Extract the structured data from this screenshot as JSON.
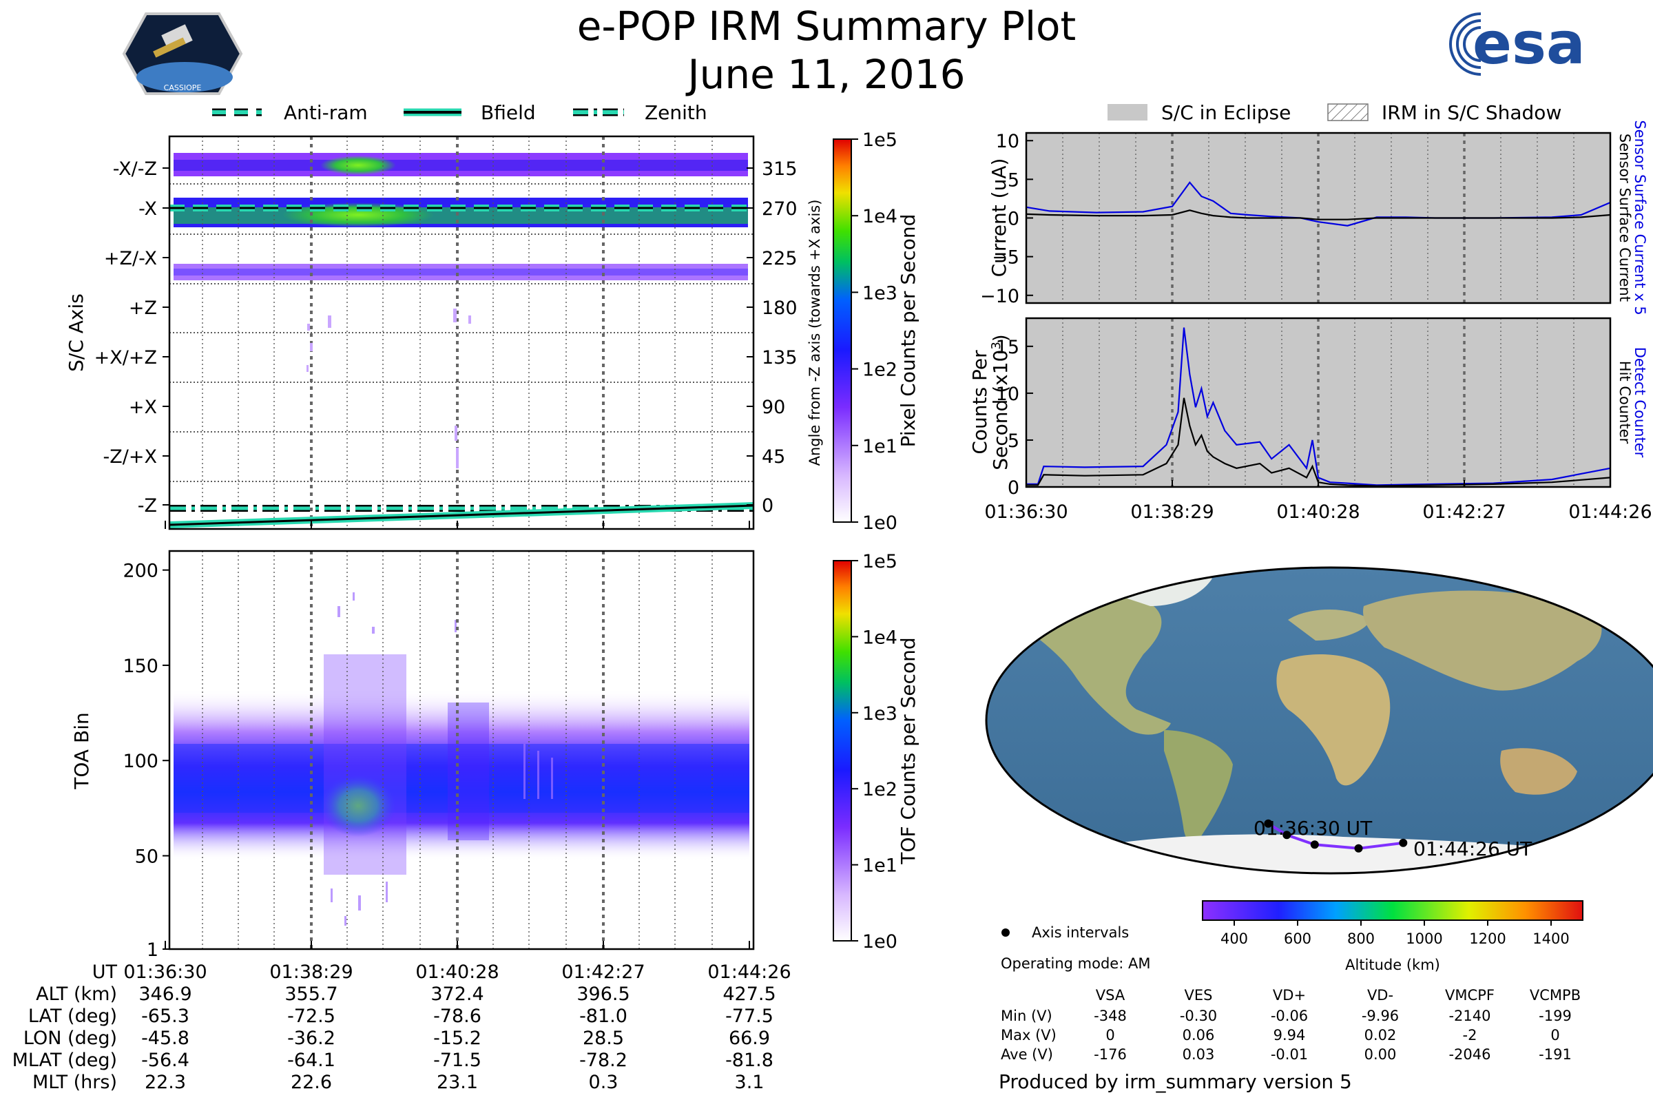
{
  "title": "e-POP IRM Summary Plot",
  "date": "June 11, 2016",
  "logos": {
    "left": "CASSIOPE",
    "right": "esa"
  },
  "legend_top_left": [
    "Anti-ram",
    "Bfield",
    "Zenith"
  ],
  "legend_top_right": [
    "S/C in Eclipse",
    "IRM in S/C Shadow"
  ],
  "produced_by": "Produced by irm_summary version 5",
  "operating_mode": "Operating mode: AM",
  "axis_intervals_label": "Axis intervals",
  "ephemeris": {
    "row_labels": [
      "UT",
      "ALT (km)",
      "LAT (deg)",
      "LON (deg)",
      "MLAT (deg)",
      "MLT (hrs)"
    ],
    "columns": [
      [
        "01:36:30",
        "346.9",
        "-65.3",
        "-45.8",
        "-56.4",
        "22.3"
      ],
      [
        "01:38:29",
        "355.7",
        "-72.5",
        "-36.2",
        "-64.1",
        "22.6"
      ],
      [
        "01:40:28",
        "372.4",
        "-78.6",
        "-15.2",
        "-71.5",
        "23.1"
      ],
      [
        "01:42:27",
        "396.5",
        "-81.0",
        "28.5",
        "-78.2",
        "0.3"
      ],
      [
        "01:44:26",
        "427.5",
        "-77.5",
        "66.9",
        "-81.8",
        "3.1"
      ]
    ]
  },
  "voltages": {
    "headers": [
      "VSA",
      "VES",
      "VD+",
      "VD-",
      "VMCPF",
      "VCMPB"
    ],
    "rows": [
      {
        "label": "Min (V)",
        "values": [
          "-348",
          "-0.30",
          "-0.06",
          "-9.96",
          "-2140",
          "-199"
        ]
      },
      {
        "label": "Max (V)",
        "values": [
          "0",
          "0.06",
          "9.94",
          "0.02",
          "-2",
          "0"
        ]
      },
      {
        "label": "Ave (V)",
        "values": [
          "-176",
          "0.03",
          "-0.01",
          "0.00",
          "-2046",
          "-191"
        ]
      }
    ]
  },
  "map": {
    "start_label": "01:36:30 UT",
    "end_label": "01:44:26 UT"
  },
  "chart_data": [
    {
      "type": "heatmap",
      "name": "angular-distribution",
      "ylabel": "S/C Axis",
      "ylabel_right": "Angle from -Z axis (towards +X axis)",
      "yticklabels_left": [
        "-X/-Z",
        "-X",
        "+Z/-X",
        "+Z",
        "+X/+Z",
        "+X",
        "-Z/+X",
        "-Z"
      ],
      "yticklabels_right": [
        "315",
        "270",
        "225",
        "180",
        "135",
        "90",
        "45",
        "0"
      ],
      "colorbar_label": "Pixel Counts per Second",
      "colorbar_ticks": [
        "1e5",
        "1e4",
        "1e3",
        "1e2",
        "1e1",
        "1e0"
      ],
      "active_bands_deg": [
        [
          292,
          340
        ],
        [
          247,
          292
        ],
        [
          202,
          238
        ]
      ]
    },
    {
      "type": "heatmap",
      "name": "time-of-arrival",
      "ylabel": "TOA Bin",
      "ylim": [
        1,
        210
      ],
      "yticks": [
        1,
        50,
        100,
        150,
        200
      ],
      "ytick_labels": [
        "1",
        "50",
        "100",
        "150",
        "200"
      ],
      "colorbar_label": "TOF Counts per Second",
      "colorbar_ticks": [
        "1e5",
        "1e4",
        "1e3",
        "1e2",
        "1e1",
        "1e0"
      ],
      "band_center_bin": 78
    },
    {
      "type": "line",
      "name": "current",
      "ylabel": "Current (uA)",
      "ylim": [
        -11,
        11
      ],
      "yticks": [
        10,
        5,
        0,
        -5,
        -10
      ],
      "ytick_labels": [
        "10",
        "5",
        "0",
        "−5",
        "−10"
      ],
      "right_labels": [
        "Sensor Surface Current x 5",
        "Sensor Surface Current"
      ],
      "x_fraction": [
        0,
        0.04,
        0.12,
        0.2,
        0.25,
        0.28,
        0.3,
        0.32,
        0.35,
        0.38,
        0.42,
        0.47,
        0.5,
        0.55,
        0.6,
        0.65,
        0.7,
        0.8,
        0.9,
        0.95,
        1.0
      ],
      "series": [
        {
          "name": "Sensor Surface Current x 5",
          "color": "#0000e0",
          "values": [
            1.4,
            0.9,
            0.7,
            0.8,
            1.5,
            4.6,
            2.8,
            2.2,
            0.6,
            0.4,
            0.2,
            0.0,
            -0.5,
            -1.0,
            0.1,
            0.1,
            0.0,
            0.0,
            0.1,
            0.4,
            2.0
          ]
        },
        {
          "name": "Sensor Surface Current",
          "color": "#000000",
          "values": [
            0.5,
            0.4,
            0.3,
            0.3,
            0.4,
            1.0,
            0.6,
            0.3,
            0.1,
            0.0,
            0.0,
            0.0,
            -0.2,
            -0.2,
            0.0,
            0.0,
            0.0,
            0.0,
            0.0,
            0.1,
            0.4
          ]
        }
      ]
    },
    {
      "type": "line",
      "name": "counts",
      "ylabel": "Counts Per Second (x10^3)",
      "ylim": [
        0,
        18
      ],
      "yticks": [
        0,
        5,
        10,
        15
      ],
      "ytick_labels": [
        "0",
        "5",
        "10",
        "15"
      ],
      "xtick_labels": [
        "01:36:30",
        "01:38:29",
        "01:40:28",
        "01:42:27",
        "01:44:26"
      ],
      "right_labels": [
        "Detect Counter",
        "Hit Counter"
      ],
      "x_fraction": [
        0,
        0.02,
        0.03,
        0.1,
        0.2,
        0.24,
        0.26,
        0.27,
        0.28,
        0.29,
        0.3,
        0.31,
        0.32,
        0.34,
        0.36,
        0.4,
        0.42,
        0.45,
        0.48,
        0.49,
        0.5,
        0.52,
        0.55,
        0.6,
        0.7,
        0.8,
        0.9,
        1.0
      ],
      "series": [
        {
          "name": "Detect Counter",
          "color": "#0000e0",
          "values": [
            0.3,
            0.3,
            2.2,
            2.1,
            2.2,
            4.5,
            8.0,
            17.0,
            12.0,
            8.5,
            10.5,
            7.5,
            9.0,
            6.0,
            4.5,
            4.8,
            3.0,
            4.5,
            2.0,
            5.0,
            1.0,
            0.5,
            0.4,
            0.2,
            0.3,
            0.4,
            0.8,
            2.0
          ]
        },
        {
          "name": "Hit Counter",
          "color": "#000000",
          "values": [
            0.2,
            0.2,
            1.3,
            1.2,
            1.3,
            2.5,
            4.5,
            9.5,
            6.5,
            4.5,
            5.5,
            3.8,
            3.2,
            2.5,
            2.0,
            2.5,
            1.5,
            2.0,
            1.0,
            2.2,
            0.5,
            0.3,
            0.2,
            0.1,
            0.2,
            0.3,
            0.5,
            1.0
          ]
        }
      ]
    },
    {
      "type": "scatter",
      "name": "ground-track",
      "colorbar_label": "Altitude (km)",
      "colorbar_ticks": [
        "400",
        "600",
        "800",
        "1000",
        "1200",
        "1400"
      ],
      "colorbar_range": [
        300,
        1500
      ],
      "points": [
        {
          "ut": "01:36:30",
          "lat": -65.3,
          "lon": -45.8
        },
        {
          "ut": "01:38:29",
          "lat": -72.5,
          "lon": -36.2
        },
        {
          "ut": "01:40:28",
          "lat": -78.6,
          "lon": -15.2
        },
        {
          "ut": "01:42:27",
          "lat": -81.0,
          "lon": 28.5
        },
        {
          "ut": "01:44:26",
          "lat": -77.5,
          "lon": 66.9
        }
      ]
    }
  ]
}
